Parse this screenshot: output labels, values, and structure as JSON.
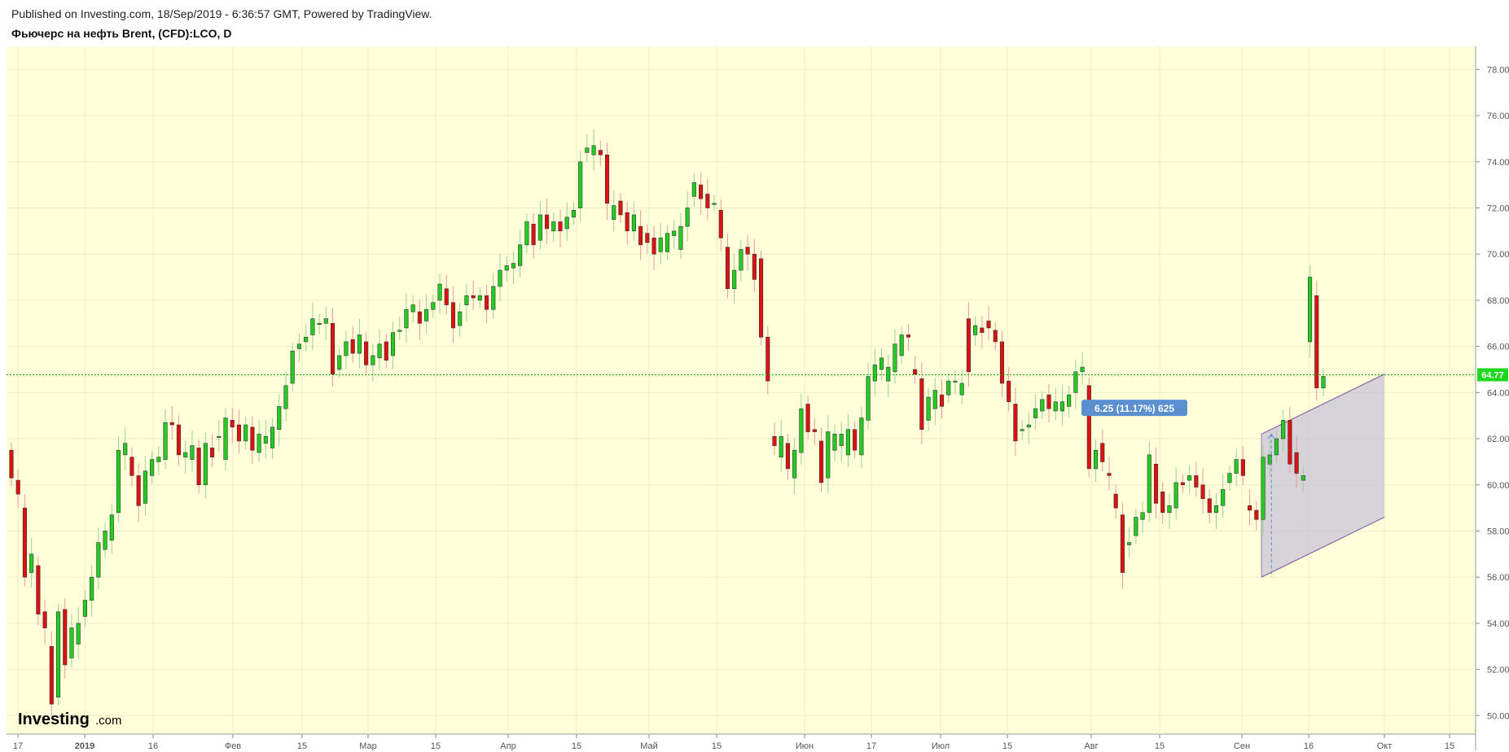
{
  "header": {
    "published": "Published on Investing.com, 18/Sep/2019 - 6:36:57 GMT, Powered by TradingView.",
    "symbol": "Фьючерс на нефть Brent, (CFD):LCO, D"
  },
  "logo": {
    "main": "Investing",
    "suffix": ".com"
  },
  "colors": {
    "background": "#ffffd9",
    "up": "#22cc22",
    "down": "#dd1111",
    "last_price_line": "#00aa00",
    "last_price_badge": "#1ed81e",
    "channel_fill": "#c8c4d8",
    "channel_stroke": "#8e67a6",
    "measure_label": "#5a8fd0"
  },
  "chart_data": {
    "type": "candlestick",
    "title": "Фьючерс на нефть Brent, (CFD):LCO, D",
    "ylim": [
      49.2,
      79.0
    ],
    "y_ticks": [
      "50.00",
      "52.00",
      "54.00",
      "56.00",
      "58.00",
      "60.00",
      "62.00",
      "64.00",
      "66.00",
      "68.00",
      "70.00",
      "72.00",
      "74.00",
      "76.00",
      "78.00"
    ],
    "x_ticks": [
      "17",
      "2019",
      "16",
      "Фев",
      "15",
      "Мар",
      "15",
      "Апр",
      "15",
      "Май",
      "15",
      "Июн",
      "17",
      "Июл",
      "15",
      "Авг",
      "15",
      "Сен",
      "16",
      "Окт",
      "15"
    ],
    "last_price": "64.77",
    "last_price_value": 64.77,
    "measure_label": "6.25 (11.17%) 625",
    "candles": [
      [
        61.5,
        60.3
      ],
      [
        60.2,
        59.6
      ],
      [
        59.0,
        56.0
      ],
      [
        56.2,
        57.0
      ],
      [
        56.5,
        54.4
      ],
      [
        54.5,
        53.8
      ],
      [
        53.0,
        50.5
      ],
      [
        50.8,
        54.5
      ],
      [
        54.6,
        52.2
      ],
      [
        52.5,
        53.8
      ],
      [
        53.1,
        54.0
      ],
      [
        54.3,
        55.0
      ],
      [
        55.0,
        56.0
      ],
      [
        56.0,
        57.5
      ],
      [
        57.2,
        58.0
      ],
      [
        57.6,
        58.7
      ],
      [
        58.8,
        61.5
      ],
      [
        61.3,
        61.8
      ],
      [
        61.2,
        60.4
      ],
      [
        60.4,
        59.1
      ],
      [
        59.2,
        60.6
      ],
      [
        60.4,
        61.1
      ],
      [
        61.0,
        61.2
      ],
      [
        61.1,
        62.7
      ],
      [
        62.7,
        62.6
      ],
      [
        62.6,
        61.3
      ],
      [
        61.2,
        61.4
      ],
      [
        61.1,
        61.7
      ],
      [
        61.6,
        60.0
      ],
      [
        60.0,
        61.8
      ],
      [
        61.6,
        61.2
      ],
      [
        62.1,
        62.1
      ],
      [
        61.1,
        62.9
      ],
      [
        62.8,
        62.5
      ],
      [
        62.6,
        61.9
      ],
      [
        61.9,
        62.6
      ],
      [
        62.5,
        61.5
      ],
      [
        61.4,
        62.2
      ],
      [
        61.8,
        62.1
      ],
      [
        61.6,
        62.5
      ],
      [
        62.4,
        63.4
      ],
      [
        63.3,
        64.3
      ],
      [
        64.4,
        65.8
      ],
      [
        65.9,
        66.1
      ],
      [
        66.2,
        66.4
      ],
      [
        66.5,
        67.2
      ],
      [
        67.0,
        67.0
      ],
      [
        67.0,
        67.2
      ],
      [
        67.0,
        64.8
      ],
      [
        65.0,
        65.6
      ],
      [
        65.6,
        66.2
      ],
      [
        66.3,
        65.7
      ],
      [
        65.7,
        66.5
      ],
      [
        66.2,
        65.2
      ],
      [
        65.2,
        65.6
      ],
      [
        65.5,
        66.1
      ],
      [
        66.2,
        65.4
      ],
      [
        65.6,
        66.6
      ],
      [
        66.7,
        66.7
      ],
      [
        66.8,
        67.6
      ],
      [
        67.5,
        67.8
      ],
      [
        67.5,
        67.0
      ],
      [
        67.1,
        67.6
      ],
      [
        67.6,
        67.9
      ],
      [
        68.0,
        68.7
      ],
      [
        68.5,
        67.8
      ],
      [
        67.9,
        66.8
      ],
      [
        66.9,
        67.5
      ],
      [
        67.8,
        68.2
      ],
      [
        68.2,
        68.1
      ],
      [
        68.0,
        68.2
      ],
      [
        68.2,
        67.6
      ],
      [
        67.6,
        68.6
      ],
      [
        68.6,
        69.3
      ],
      [
        69.3,
        69.5
      ],
      [
        69.4,
        69.6
      ],
      [
        69.5,
        70.4
      ],
      [
        70.4,
        71.4
      ],
      [
        71.3,
        70.4
      ],
      [
        70.6,
        71.7
      ],
      [
        71.7,
        71.1
      ],
      [
        71.0,
        71.4
      ],
      [
        71.4,
        71.0
      ],
      [
        71.1,
        71.6
      ],
      [
        71.6,
        71.9
      ],
      [
        72.0,
        74.0
      ],
      [
        74.4,
        74.6
      ],
      [
        74.3,
        74.7
      ],
      [
        74.5,
        74.3
      ],
      [
        74.3,
        72.2
      ],
      [
        71.5,
        72.1
      ],
      [
        72.3,
        71.7
      ],
      [
        71.8,
        71.0
      ],
      [
        71.0,
        71.7
      ],
      [
        71.2,
        70.4
      ],
      [
        70.9,
        70.5
      ],
      [
        70.7,
        70.0
      ],
      [
        70.1,
        70.7
      ],
      [
        70.1,
        70.9
      ],
      [
        70.8,
        71.0
      ],
      [
        70.2,
        71.2
      ],
      [
        71.2,
        72.0
      ],
      [
        72.5,
        73.1
      ],
      [
        73.0,
        72.4
      ],
      [
        72.6,
        72.0
      ],
      [
        72.2,
        72.2
      ],
      [
        71.9,
        70.7
      ],
      [
        70.3,
        68.5
      ],
      [
        68.5,
        69.3
      ],
      [
        69.3,
        70.2
      ],
      [
        70.3,
        70.0
      ],
      [
        70.0,
        68.9
      ],
      [
        69.8,
        66.4
      ],
      [
        66.4,
        64.5
      ],
      [
        62.1,
        61.7
      ],
      [
        61.2,
        62.1
      ],
      [
        61.8,
        60.7
      ],
      [
        60.3,
        61.5
      ],
      [
        61.4,
        63.3
      ],
      [
        63.5,
        62.3
      ],
      [
        62.4,
        62.3
      ],
      [
        61.9,
        60.1
      ],
      [
        60.3,
        62.3
      ],
      [
        61.5,
        62.2
      ],
      [
        61.7,
        62.2
      ],
      [
        61.3,
        62.4
      ],
      [
        62.4,
        61.5
      ],
      [
        61.3,
        62.9
      ],
      [
        62.8,
        64.7
      ],
      [
        64.5,
        65.2
      ],
      [
        65.0,
        65.5
      ],
      [
        64.5,
        65.1
      ],
      [
        64.9,
        66.1
      ],
      [
        65.6,
        66.5
      ],
      [
        66.5,
        66.4
      ],
      [
        65.0,
        64.8
      ],
      [
        64.6,
        62.4
      ],
      [
        62.8,
        63.8
      ],
      [
        63.3,
        64.1
      ],
      [
        63.9,
        63.4
      ],
      [
        63.9,
        64.5
      ],
      [
        64.5,
        64.5
      ],
      [
        63.9,
        64.4
      ],
      [
        67.2,
        64.9
      ],
      [
        66.5,
        66.9
      ],
      [
        66.8,
        66.6
      ],
      [
        67.1,
        66.8
      ],
      [
        66.7,
        66.2
      ],
      [
        66.2,
        64.4
      ],
      [
        64.5,
        63.6
      ],
      [
        63.5,
        61.9
      ],
      [
        62.4,
        62.4
      ],
      [
        62.5,
        62.6
      ],
      [
        62.9,
        63.3
      ],
      [
        63.2,
        63.7
      ],
      [
        63.9,
        63.3
      ],
      [
        63.2,
        63.6
      ],
      [
        63.2,
        63.6
      ],
      [
        63.4,
        63.9
      ],
      [
        64.0,
        64.9
      ],
      [
        64.9,
        65.1
      ],
      [
        64.3,
        60.7
      ],
      [
        60.7,
        61.5
      ],
      [
        61.8,
        61.0
      ],
      [
        60.5,
        60.4
      ],
      [
        59.6,
        59.0
      ],
      [
        58.7,
        56.2
      ],
      [
        57.4,
        57.5
      ],
      [
        57.8,
        58.6
      ],
      [
        58.5,
        58.8
      ],
      [
        58.8,
        61.3
      ],
      [
        60.9,
        59.2
      ],
      [
        59.7,
        58.8
      ],
      [
        58.8,
        59.1
      ],
      [
        59.0,
        60.1
      ],
      [
        60.1,
        60.0
      ],
      [
        60.2,
        60.4
      ],
      [
        60.4,
        59.9
      ],
      [
        60.0,
        59.4
      ],
      [
        59.4,
        58.8
      ],
      [
        58.8,
        59.1
      ],
      [
        59.1,
        59.8
      ],
      [
        60.1,
        60.5
      ],
      [
        60.5,
        61.1
      ],
      [
        61.1,
        60.4
      ],
      [
        59.1,
        58.9
      ],
      [
        58.9,
        58.5
      ],
      [
        58.5,
        61.2
      ],
      [
        60.9,
        61.3
      ],
      [
        61.3,
        62.0
      ],
      [
        62.0,
        62.8
      ],
      [
        62.8,
        60.9
      ],
      [
        61.4,
        60.5
      ],
      [
        60.2,
        60.4
      ],
      [
        66.2,
        69.0
      ],
      [
        68.2,
        64.2
      ],
      [
        64.2,
        64.7
      ]
    ],
    "x_label_positions": [
      0,
      30,
      75,
      115,
      160,
      205,
      248,
      288,
      333,
      368,
      395,
      442,
      484,
      518,
      560,
      602,
      644,
      691,
      728,
      777,
      808
    ],
    "channel": {
      "start_index": 187,
      "end_index": 229,
      "upper_start": 62.2,
      "upper_end": 64.8,
      "lower_start": 56.0,
      "lower_end": 58.6
    }
  }
}
